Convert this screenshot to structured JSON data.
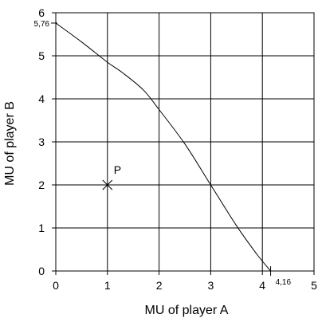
{
  "chart_data": {
    "type": "line",
    "title": "",
    "xlabel": "MU of player A",
    "ylabel": "MU of player B",
    "xlim": [
      0,
      5
    ],
    "ylim": [
      0,
      6
    ],
    "grid": true,
    "x_ticks": [
      "0",
      "1",
      "2",
      "3",
      "4",
      "5"
    ],
    "y_ticks": [
      "0",
      "1",
      "2",
      "3",
      "4",
      "5",
      "6"
    ],
    "frontier": [
      {
        "x": 0,
        "y": 5.76
      },
      {
        "x": 0.5,
        "y": 5.32
      },
      {
        "x": 1.0,
        "y": 4.85
      },
      {
        "x": 1.3,
        "y": 4.6
      },
      {
        "x": 1.7,
        "y": 4.2
      },
      {
        "x": 2.0,
        "y": 3.75
      },
      {
        "x": 2.5,
        "y": 2.95
      },
      {
        "x": 3.0,
        "y": 2.0
      },
      {
        "x": 3.5,
        "y": 1.05
      },
      {
        "x": 3.9,
        "y": 0.38
      },
      {
        "x": 4.16,
        "y": 0
      }
    ],
    "annotations": {
      "y_intercept": {
        "label": "5,76",
        "value": 5.76
      },
      "x_intercept": {
        "label": "4,16",
        "value": 4.16
      }
    },
    "point": {
      "label": "P",
      "x": 1,
      "y": 2
    }
  }
}
